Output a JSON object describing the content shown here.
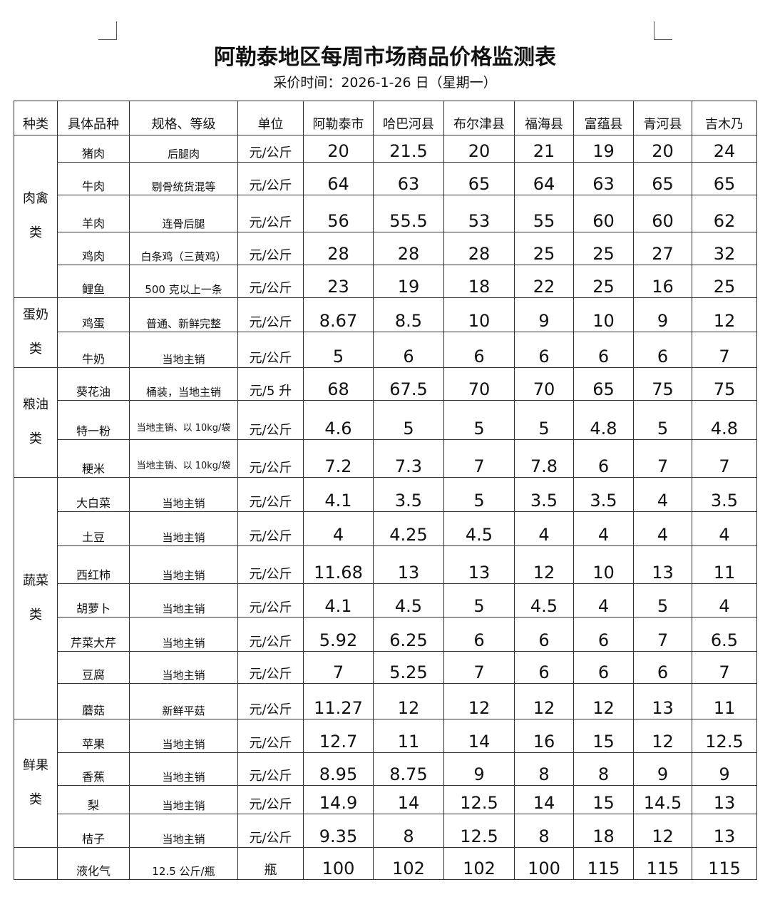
{
  "title": "阿勒泰地区每周市场商品价格监测表",
  "subtitle": "采价时间：2026-1-26 日（星期一）",
  "headers": [
    "种类",
    "具体品种",
    "规格、等级",
    "单位",
    "阿勒泰市",
    "哈巴河县",
    "布尔津县",
    "福海县",
    "富蕴县",
    "青河县",
    "吉木乃"
  ],
  "categories": [
    {
      "label": [
        "肉禽",
        "类"
      ],
      "rows": [
        {
          "name": "猪肉",
          "spec": "后腿肉",
          "unit": "元/公斤",
          "values": [
            "20",
            "21.5",
            "20",
            "21",
            "19",
            "20",
            "24"
          ]
        },
        {
          "name": "牛肉",
          "spec": "剔骨统货混等",
          "unit": "元/公斤",
          "values": [
            "64",
            "63",
            "65",
            "64",
            "63",
            "65",
            "65"
          ]
        },
        {
          "name": "羊肉",
          "spec": "连骨后腿",
          "unit": "元/公斤",
          "values": [
            "56",
            "55.5",
            "53",
            "55",
            "60",
            "60",
            "62"
          ]
        },
        {
          "name": "鸡肉",
          "spec": "白条鸡（三黄鸡）",
          "unit": "元/公斤",
          "values": [
            "28",
            "28",
            "28",
            "25",
            "25",
            "27",
            "32"
          ]
        },
        {
          "name": "鲤鱼",
          "spec": "500 克以上一条",
          "unit": "元/公斤",
          "values": [
            "23",
            "19",
            "18",
            "22",
            "25",
            "16",
            "25"
          ]
        }
      ]
    },
    {
      "label": [
        "蛋奶",
        "类"
      ],
      "rows": [
        {
          "name": "鸡蛋",
          "spec": "普通、新鲜完整",
          "unit": "元/公斤",
          "values": [
            "8.67",
            "8.5",
            "10",
            "9",
            "10",
            "9",
            "12"
          ]
        },
        {
          "name": "牛奶",
          "spec": "当地主销",
          "unit": "元/公斤",
          "values": [
            "5",
            "6",
            "6",
            "6",
            "6",
            "6",
            "7"
          ]
        }
      ]
    },
    {
      "label": [
        "粮油",
        "类"
      ],
      "rows": [
        {
          "name": "葵花油",
          "spec": "桶装，当地主销",
          "unit": "元/5 升",
          "values": [
            "68",
            "67.5",
            "70",
            "70",
            "65",
            "75",
            "75"
          ]
        },
        {
          "name": "特一粉",
          "spec": "当地主销、以 10kg/袋",
          "unit": "元/公斤",
          "values": [
            "4.6",
            "5",
            "5",
            "5",
            "4.8",
            "5",
            "4.8"
          ]
        },
        {
          "name": "粳米",
          "spec": "当地主销、以 10kg/袋",
          "unit": "元/公斤",
          "values": [
            "7.2",
            "7.3",
            "7",
            "7.8",
            "6",
            "7",
            "7"
          ]
        }
      ]
    },
    {
      "label": [
        "蔬菜",
        "类"
      ],
      "rows": [
        {
          "name": "大白菜",
          "spec": "当地主销",
          "unit": "元/公斤",
          "values": [
            "4.1",
            "3.5",
            "5",
            "3.5",
            "3.5",
            "4",
            "3.5"
          ]
        },
        {
          "name": "土豆",
          "spec": "当地主销",
          "unit": "元/公斤",
          "values": [
            "4",
            "4.25",
            "4.5",
            "4",
            "4",
            "4",
            "4"
          ]
        },
        {
          "name": "西红柿",
          "spec": "当地主销",
          "unit": "元/公斤",
          "values": [
            "11.68",
            "13",
            "13",
            "12",
            "10",
            "13",
            "11"
          ]
        },
        {
          "name": "胡萝卜",
          "spec": "当地主销",
          "unit": "元/公斤",
          "values": [
            "4.1",
            "4.5",
            "5",
            "4.5",
            "4",
            "5",
            "4"
          ]
        },
        {
          "name": "芹菜大芹",
          "spec": "当地主销",
          "unit": "元/公斤",
          "values": [
            "5.92",
            "6.25",
            "6",
            "6",
            "6",
            "7",
            "6.5"
          ]
        },
        {
          "name": "豆腐",
          "spec": "当地主销",
          "unit": "元/公斤",
          "values": [
            "7",
            "5.25",
            "7",
            "6",
            "6",
            "6",
            "7"
          ]
        },
        {
          "name": "蘑菇",
          "spec": "新鲜平菇",
          "unit": "元/公斤",
          "values": [
            "11.27",
            "12",
            "12",
            "12",
            "12",
            "13",
            "11"
          ]
        }
      ]
    },
    {
      "label": [
        "鲜果",
        "类"
      ],
      "rows": [
        {
          "name": "苹果",
          "spec": "当地主销",
          "unit": "元/公斤",
          "values": [
            "12.7",
            "11",
            "14",
            "16",
            "15",
            "12",
            "12.5"
          ]
        },
        {
          "name": "香蕉",
          "spec": "当地主销",
          "unit": "元/公斤",
          "values": [
            "8.95",
            "8.75",
            "9",
            "8",
            "8",
            "9",
            "9"
          ]
        },
        {
          "name": "梨",
          "spec": "当地主销",
          "unit": "元/公斤",
          "values": [
            "14.9",
            "14",
            "12.5",
            "14",
            "15",
            "14.5",
            "13"
          ]
        },
        {
          "name": "桔子",
          "spec": "当地主销",
          "unit": "元/公斤",
          "values": [
            "9.35",
            "8",
            "12.5",
            "8",
            "18",
            "12",
            "13"
          ]
        }
      ]
    },
    {
      "label": [
        "",
        ""
      ],
      "rows": [
        {
          "name": "液化气",
          "spec": "12.5 公斤/瓶",
          "unit": "瓶",
          "values": [
            "100",
            "102",
            "102",
            "100",
            "115",
            "115",
            "115"
          ]
        }
      ]
    }
  ]
}
